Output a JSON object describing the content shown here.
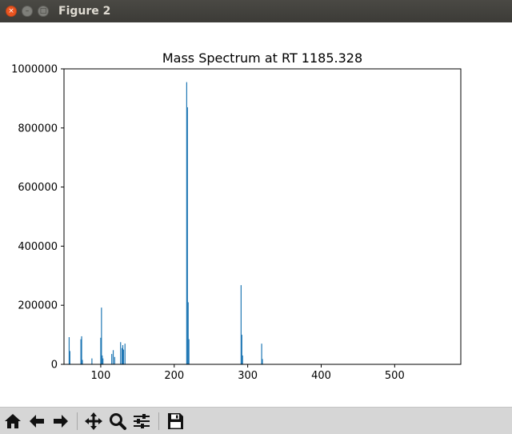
{
  "window": {
    "title": "Figure 2",
    "close_glyph": "×",
    "minimize_glyph": "–",
    "maximize_glyph": "□"
  },
  "toolbar": {
    "buttons": [
      {
        "name": "home-icon",
        "label": "Home"
      },
      {
        "name": "back-arrow-icon",
        "label": "Back"
      },
      {
        "name": "forward-arrow-icon",
        "label": "Forward"
      },
      {
        "name": "pan-move-icon",
        "label": "Pan"
      },
      {
        "name": "zoom-magnifier-icon",
        "label": "Zoom"
      },
      {
        "name": "subplots-sliders-icon",
        "label": "Configure subplots"
      },
      {
        "name": "save-floppy-icon",
        "label": "Save"
      }
    ]
  },
  "chart_data": {
    "type": "bar",
    "title": "Mass Spectrum at RT 1185.328",
    "xlabel": "",
    "ylabel": "",
    "xlim": [
      50,
      590
    ],
    "ylim": [
      0,
      1000000
    ],
    "xticks": [
      100,
      200,
      300,
      400,
      500
    ],
    "yticks": [
      0,
      200000,
      400000,
      600000,
      800000,
      1000000
    ],
    "grid": false,
    "bar_color": "#1f77b4",
    "points": [
      {
        "x": 57,
        "y": 92000
      },
      {
        "x": 58,
        "y": 45000
      },
      {
        "x": 73,
        "y": 85000
      },
      {
        "x": 74,
        "y": 95000
      },
      {
        "x": 75,
        "y": 15000
      },
      {
        "x": 88,
        "y": 20000
      },
      {
        "x": 100,
        "y": 90000
      },
      {
        "x": 101,
        "y": 192000
      },
      {
        "x": 102,
        "y": 30000
      },
      {
        "x": 103,
        "y": 20000
      },
      {
        "x": 115,
        "y": 35000
      },
      {
        "x": 117,
        "y": 48000
      },
      {
        "x": 119,
        "y": 25000
      },
      {
        "x": 127,
        "y": 75000
      },
      {
        "x": 129,
        "y": 55000
      },
      {
        "x": 130,
        "y": 65000
      },
      {
        "x": 131,
        "y": 50000
      },
      {
        "x": 133,
        "y": 70000
      },
      {
        "x": 217,
        "y": 955000
      },
      {
        "x": 218,
        "y": 870000
      },
      {
        "x": 219,
        "y": 210000
      },
      {
        "x": 220,
        "y": 85000
      },
      {
        "x": 291,
        "y": 268000
      },
      {
        "x": 292,
        "y": 100000
      },
      {
        "x": 293,
        "y": 30000
      },
      {
        "x": 319,
        "y": 70000
      },
      {
        "x": 320,
        "y": 18000
      }
    ]
  }
}
